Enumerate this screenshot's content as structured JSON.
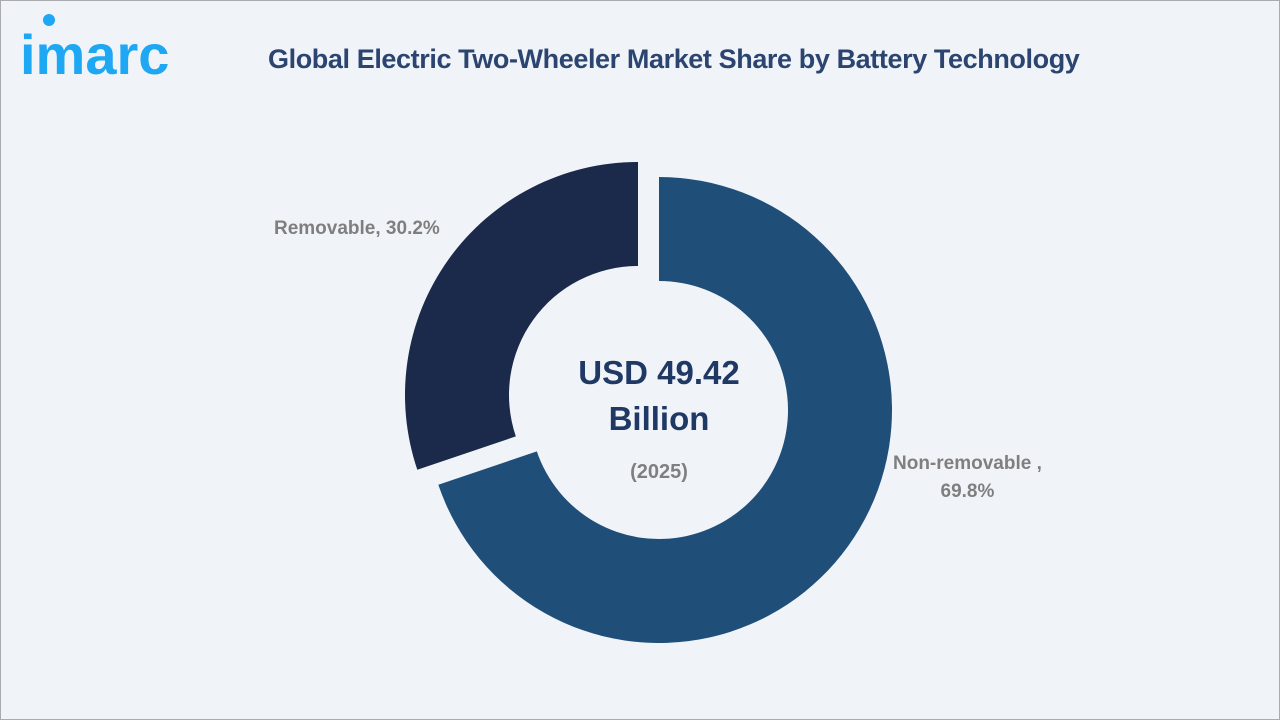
{
  "brand": {
    "logo_text": "imarc",
    "logo_color": "#1ea7f2"
  },
  "header": {
    "title": "Global Electric Two-Wheeler Market Share by Battery Technology"
  },
  "center": {
    "value_line1": "USD 49.42",
    "value_line2": "Billion",
    "year": "(2025)"
  },
  "labels": {
    "removable": "Removable, 30.2%",
    "nonremovable_line1": "Non-removable ,",
    "nonremovable_line2": "69.8%"
  },
  "colors": {
    "removable": "#1b2a4a",
    "nonremovable": "#1f4e79",
    "background": "#f0f4f9",
    "title": "#2b4470",
    "label": "#7f7f7f"
  },
  "chart_data": {
    "type": "pie",
    "variant": "donut",
    "title": "Global Electric Two-Wheeler Market Share by Battery Technology",
    "categories": [
      "Non-removable",
      "Removable"
    ],
    "values": [
      69.8,
      30.2
    ],
    "unit": "%",
    "center_annotation": "USD 49.42 Billion (2025)",
    "exploded": [
      "Removable"
    ],
    "legend": "none (data labels beside slices)"
  }
}
